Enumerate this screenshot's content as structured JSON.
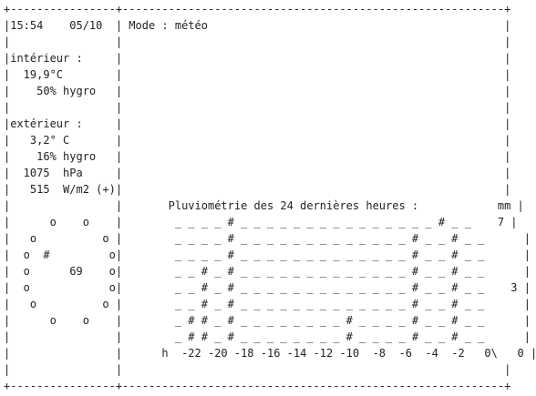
{
  "terminal": {
    "border_top": "+----------------+----------------------------------------------------------+",
    "border_bottom": "+----------------+----------------------------------------------------------+",
    "lines": [
      "|15:54    05/10  | Mode : météo                                             |",
      "|                |                                                          |",
      "|intérieur :     |                                                          |",
      "|  19,9°C        |                                                          |",
      "|    50% hygro   |                                                          |",
      "|                |                                                          |",
      "|extérieur :     |                                                          |",
      "|   3,2° C       |                                                          |",
      "|    16% hygro   |                                                          |",
      "|  1075  hPa     |                                                          |",
      "|   515  W/m2 (+)|                                                          |",
      "|                |       Pluviométrie des 24 dernières heures :            mm |",
      "|      o    o    |        _ _ _ _ # _ _ _ _ _ _ _ _ _ _ _ _ _ _ _ # _ _    7 |",
      "|   o          o |        _ _ _ _ # _ _ _ _ _ _ _ _ _ _ _ _ _ # _ _ # _ _      |",
      "|  o  #         o|        _ _ _ _ # _ _ _ _ _ _ _ _ _ _ _ _ _ # _ _ # _ _      |",
      "|  o      69    o|        _ _ # _ # _ _ _ _ _ _ _ _ _ _ _ _ _ # _ _ # _ _      |",
      "|  o            o|        _ _ # _ # _ _ _ _ _ _ _ _ _ _ _ _ _ # _ _ # _ _    3 |",
      "|   o          o |        _ _ # _ # _ _ _ _ _ _ _ _ _ _ _ _ _ # _ _ # _ _      |",
      "|      o    o    |        _ # # _ # _ _ _ _ _ _ _ _ # _ _ _ _ # _ _ # _ _      |",
      "|                |        _ # # _ # _ _ _ _ _ _ _ _ # _ _ _ _ # _ _ # _ _      |",
      "|                |      h  -22 -20 -18 -16 -14 -12 -10  -8  -6  -4  -2   0\\   0 |",
      "|                |                                                          |"
    ]
  }
}
